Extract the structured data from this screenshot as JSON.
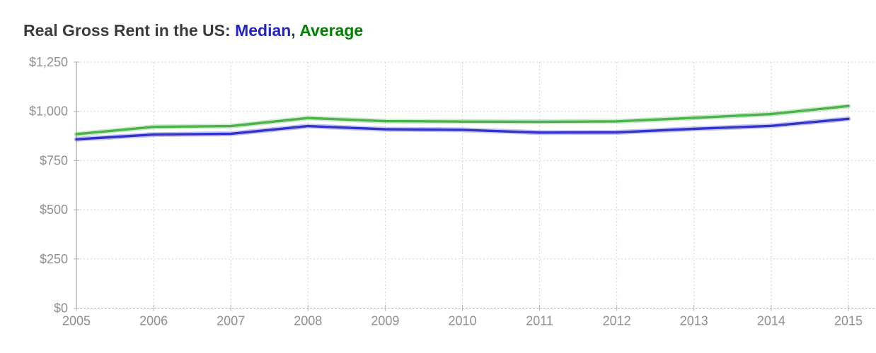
{
  "title": {
    "prefix": "Real Gross Rent in the US: ",
    "median_label": "Median",
    "separator": ", ",
    "average_label": "Average"
  },
  "colors": {
    "title_text": "#3b3b3b",
    "title_median": "#2222cc",
    "title_average": "#008000",
    "median_line": "#3333cc",
    "average_line": "#4cb24c",
    "axis_label": "#8f8f8f",
    "gridline": "#d2d2d2",
    "axis_line": "#b5b5b5"
  },
  "chart_data": {
    "type": "line",
    "title": "Real Gross Rent in the US: Median, Average",
    "x": [
      2005,
      2006,
      2007,
      2008,
      2009,
      2010,
      2011,
      2012,
      2013,
      2014,
      2015
    ],
    "x_labels": [
      "2005",
      "2006",
      "2007",
      "2008",
      "2009",
      "2010",
      "2011",
      "2012",
      "2013",
      "2014",
      "2015"
    ],
    "series": [
      {
        "name": "Median",
        "color": "#3333cc",
        "values": [
          858,
          882,
          886,
          925,
          909,
          906,
          892,
          893,
          911,
          926,
          962
        ]
      },
      {
        "name": "Average",
        "color": "#4cb24c",
        "values": [
          884,
          921,
          925,
          966,
          950,
          948,
          947,
          949,
          967,
          986,
          1027
        ]
      }
    ],
    "ylim": [
      0,
      1250
    ],
    "yticks": [
      0,
      250,
      500,
      750,
      1000,
      1250
    ],
    "ytick_labels": [
      "$0",
      "$250",
      "$500",
      "$750",
      "$1,000",
      "$1,250"
    ],
    "xlabel": "",
    "ylabel": "",
    "grid": true,
    "legend_position": "inline-title"
  }
}
